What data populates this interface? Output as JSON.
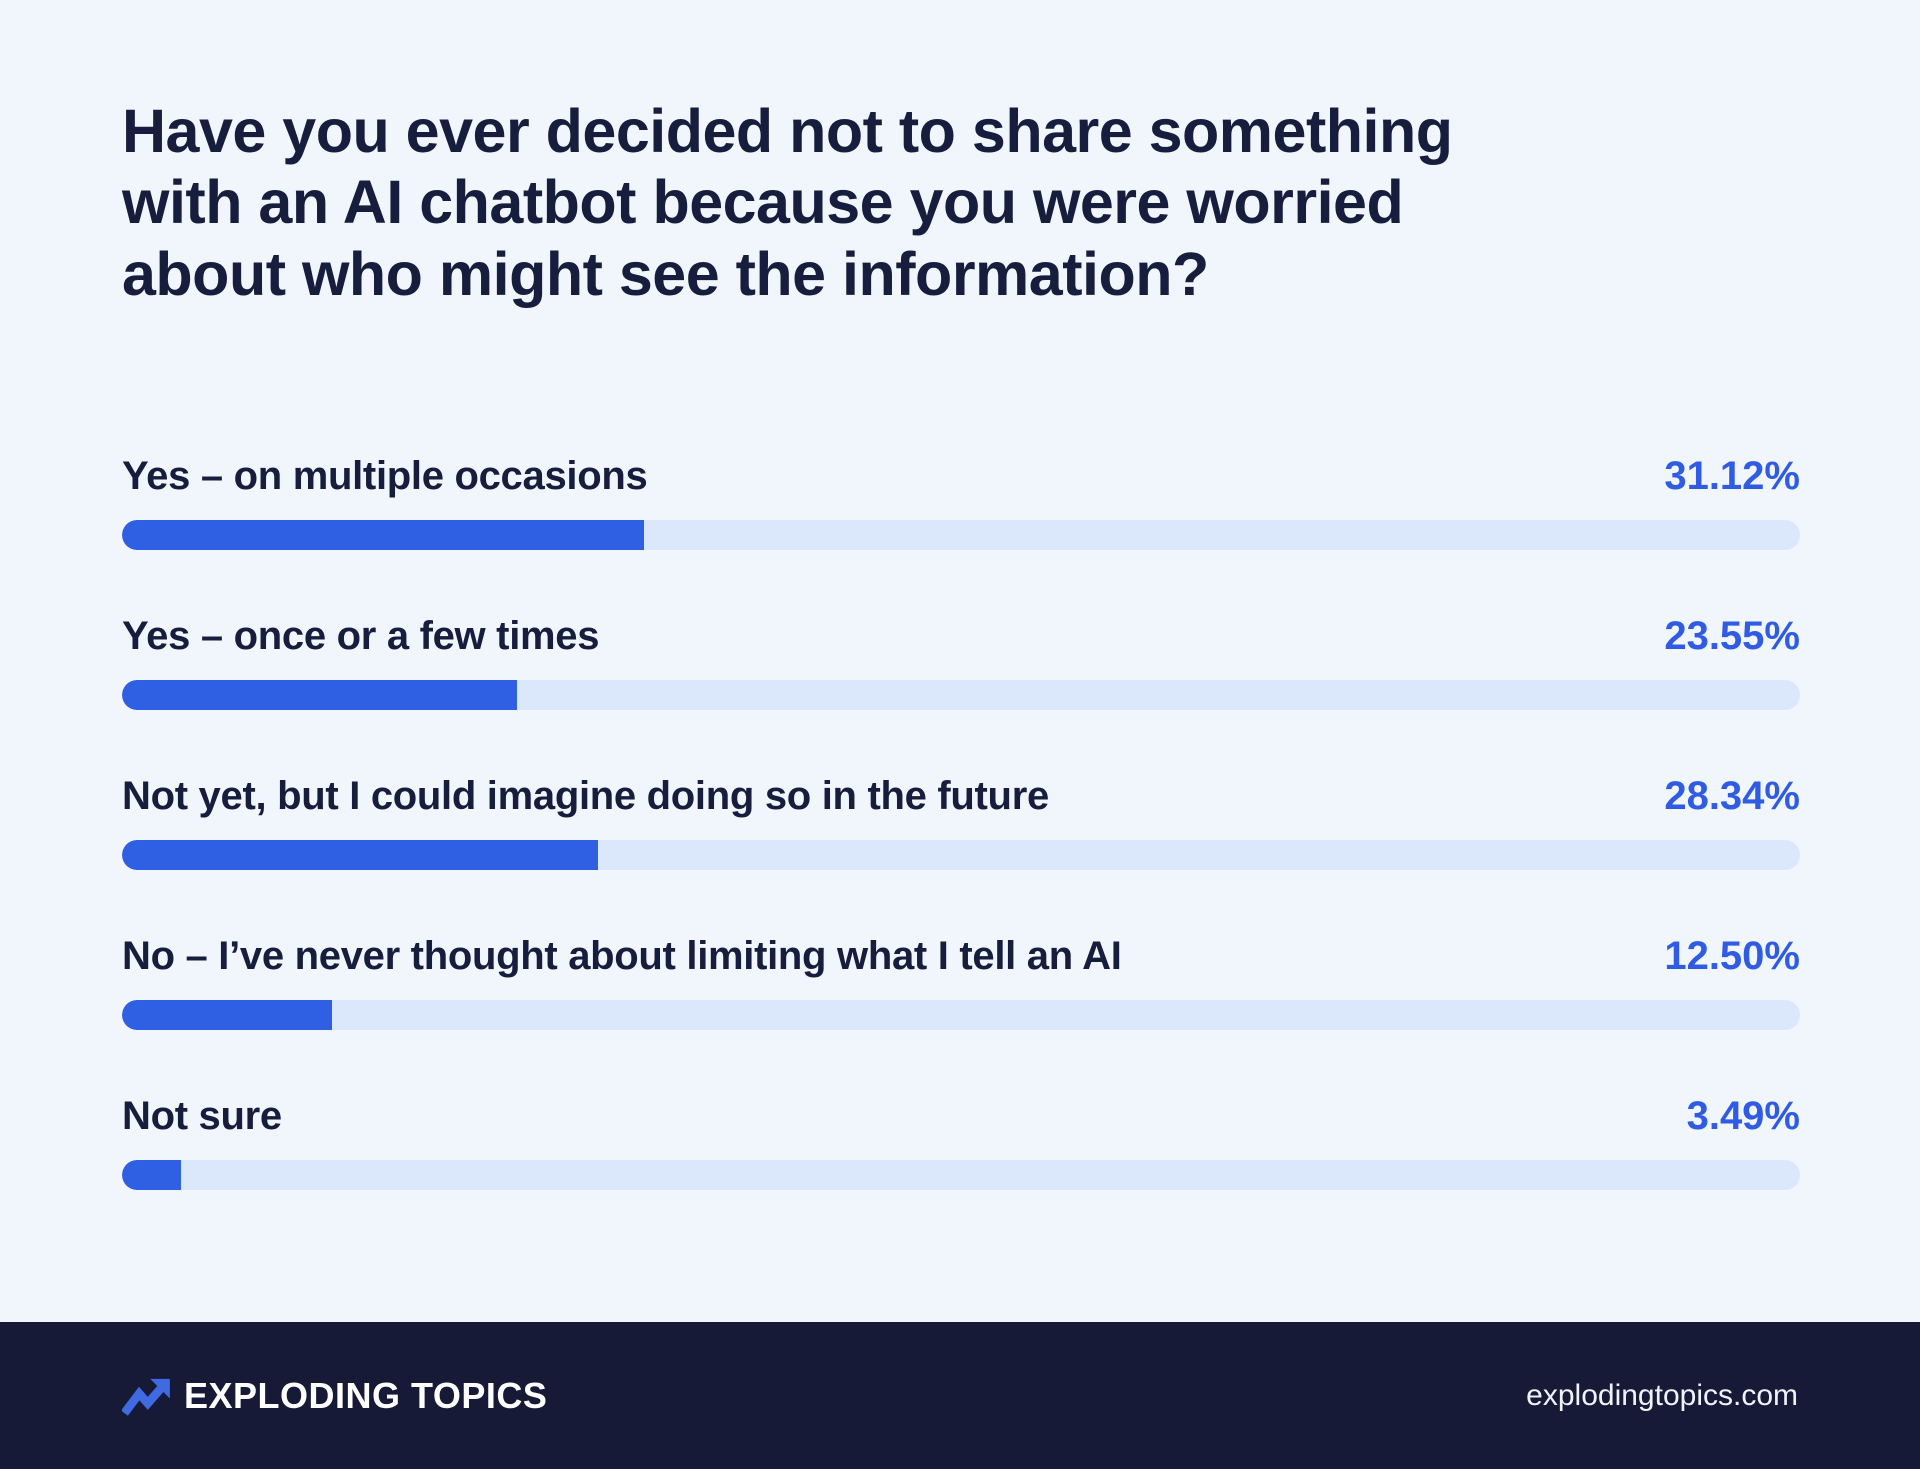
{
  "page": {
    "title": "Have you ever decided not to share something with an AI chatbot because you were worried about who might see the information?",
    "background_color": "#f1f5fc"
  },
  "chart_data": {
    "type": "bar",
    "orientation": "horizontal",
    "title": "Have you ever decided not to share something with an AI chatbot because you were worried about who might see the information?",
    "categories": [
      "Yes – on multiple occasions",
      "Yes – once or a few times",
      "Not yet, but I could imagine doing so in the future",
      "No – I’ve never thought about limiting what I tell an AI",
      "Not sure"
    ],
    "values": [
      31.12,
      23.55,
      28.34,
      12.5,
      3.49
    ],
    "value_labels": [
      "31.12%",
      "23.55%",
      "28.34%",
      "12.50%",
      "3.49%"
    ],
    "xlim": [
      0,
      100
    ],
    "grid": false,
    "legend": false,
    "colors": {
      "bar_fill": "#2f5fe3",
      "bar_track": "#dbe7fb",
      "label_text": "#171d3d",
      "value_text": "#2f5ce2"
    }
  },
  "footer": {
    "brand": "EXPLODING TOPICS",
    "website": "explodingtopics.com",
    "colors": {
      "background": "#161a36",
      "text": "#ffffff",
      "logo": "#3f6ae0"
    }
  }
}
